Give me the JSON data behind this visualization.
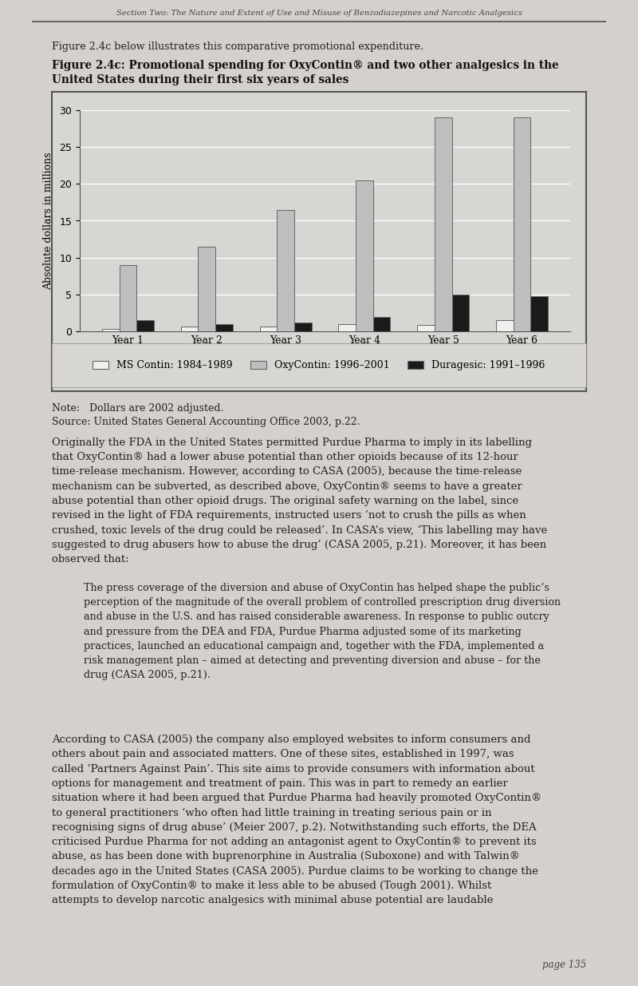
{
  "years": [
    "Year 1",
    "Year 2",
    "Year 3",
    "Year 4",
    "Year 5",
    "Year 6"
  ],
  "ms_contin": [
    0.3,
    0.6,
    0.6,
    1.0,
    0.9,
    1.5
  ],
  "oxycontin": [
    9.0,
    11.5,
    16.5,
    20.5,
    29.0,
    29.0
  ],
  "duragesic": [
    1.5,
    1.0,
    1.2,
    2.0,
    5.0,
    4.8
  ],
  "ms_contin_color": "#f2f0ee",
  "oxycontin_color": "#bebebe",
  "duragesic_color": "#1a1a1a",
  "ms_contin_label": "MS Contin: 1984–1989",
  "oxycontin_label": "OxyContin: 1996–2001",
  "duragesic_label": "Duragesic: 1991–1996",
  "ylabel": "Absolute dollars in millions",
  "ylim": [
    0,
    30
  ],
  "yticks": [
    0,
    5,
    10,
    15,
    20,
    25,
    30
  ],
  "bar_width": 0.22,
  "page_header": "Section Two: The Nature and Extent of Use and Misuse of Benzodiazepines and Narcotic Analgesics",
  "note_line1": "Note:   Dollars are 2002 adjusted.",
  "note_line2": "Source: United States General Accounting Office 2003, p.22.",
  "intro_text": "Figure 2.4c below illustrates this comparative promotional expenditure.",
  "fig_title_line1": "Figure 2.4c: Promotional spending for OxyContin® and two other analgesics in the",
  "fig_title_line2": "United States during their first six years of sales",
  "chart_bg": "#d8d6d2",
  "page_bg": "#d4d1cc",
  "border_color": "#555555",
  "grid_color": "#ffffff",
  "edgecolor": "#666666",
  "body1": "Originally the FDA in the United States permitted Purdue Pharma to imply in its labelling that OxyContin® had a lower abuse potential than other opioids because of its 12-hour time-release mechanism. However, according to CASA (2005), because the time-release mechanism can be subverted, as described above, OxyContin® seems to have a greater abuse potential than other opioid drugs. The original safety warning on the label, since revised in the light of FDA requirements, instructed users ‘not to crush the pills as when crushed, toxic levels of the drug could be released’. In CASA’s view, ‘This labelling may have suggested to drug abusers how to abuse the drug’ (CASA 2005, p.21). Moreover, it has been observed that:",
  "quote": "The press coverage of the diversion and abuse of OxyContin has helped shape the public’s perception of the magnitude of the overall problem of controlled prescription drug diversion and abuse in the U.S. and has raised considerable awareness. In response to public outcry and pressure from the DEA and FDA, Purdue Pharma adjusted some of its marketing practices, launched an educational campaign and, together with the FDA, implemented a risk management plan – aimed at detecting and preventing diversion and abuse – for the drug (CASA 2005, p.21).",
  "body2": "According to CASA (2005) the company also employed websites to inform consumers and others about pain and associated matters. One of these sites, established in 1997, was called ‘Partners Against Pain’. This site aims to provide consumers with information about options for management and treatment of pain. This was in part to remedy an earlier situation where it had been argued that Purdue Pharma had heavily promoted OxyContin® to general practitioners ‘who often had little training in treating serious pain or in recognising signs of drug abuse’ (Meier 2007, p.2). Notwithstanding such efforts, the DEA criticised Purdue Pharma for not adding an antagonist agent to OxyContin® to prevent its abuse, as has been done with buprenorphine in Australia (Suboxone) and with Talwin® decades ago in the United States (CASA 2005). Purdue claims to be working to change the formulation of OxyContin® to make it less able to be abused (Tough 2001). Whilst attempts to develop narcotic analgesics with minimal abuse potential are laudable"
}
